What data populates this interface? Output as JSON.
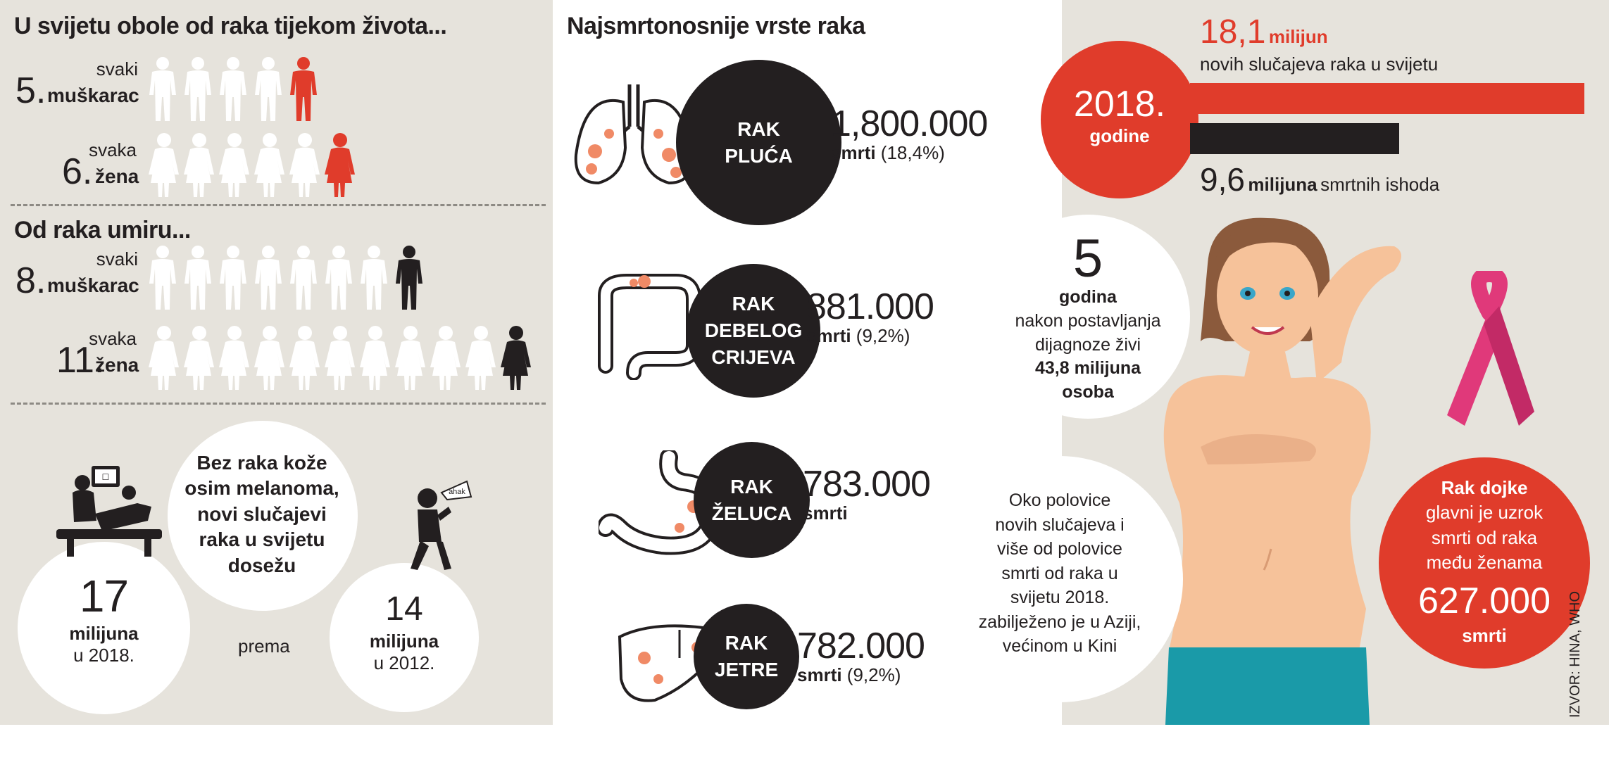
{
  "colors": {
    "red": "#e03c2b",
    "black": "#231f20",
    "panel": "#e6e3dc",
    "pink": "#e0397a",
    "teal": "#1a9aa8"
  },
  "incidence": {
    "title": "U svijetu obole od raka tijekom života...",
    "men": {
      "num": "5.",
      "word": "svaki",
      "label": "muškarac",
      "count": 5
    },
    "women": {
      "num": "6.",
      "word": "svaka",
      "label": "žena",
      "count": 6
    }
  },
  "mortality": {
    "title": "Od raka umiru...",
    "men": {
      "num": "8.",
      "word": "svaki",
      "label": "muškarac",
      "count": 8
    },
    "women": {
      "num": "11.",
      "word": "svaka",
      "label": "žena",
      "count": 11
    }
  },
  "compare": {
    "text": "Bez raka kože osim melanoma, novi slučajevi raka u svijetu dosežu",
    "prema": "prema",
    "screen_badge": "☐",
    "ahak": "ahak",
    "a": {
      "num": "17",
      "unit": "milijuna",
      "year": "u 2018."
    },
    "b": {
      "num": "14",
      "unit": "milijuna",
      "year": "u 2012."
    }
  },
  "deadliest": {
    "title": "Najsmrtonosnije vrste raka",
    "deaths_word": "smrti",
    "items": [
      {
        "icon": "lungs-icon",
        "line1": "RAK",
        "line2": "PLUĆA",
        "line3": "",
        "deaths": "1,800.000",
        "pct": "(18,4%)"
      },
      {
        "icon": "colon-icon",
        "line1": "RAK",
        "line2": "DEBELOG",
        "line3": "CRIJEVA",
        "deaths": "881.000",
        "pct": "(9,2%)"
      },
      {
        "icon": "stomach-icon",
        "line1": "RAK",
        "line2": "ŽELUCA",
        "line3": "",
        "deaths": "783.000",
        "pct": ""
      },
      {
        "icon": "liver-icon",
        "line1": "RAK",
        "line2": "JETRE",
        "line3": "",
        "deaths": "782.000",
        "pct": "(9,2%)"
      }
    ]
  },
  "overview": {
    "year": "2018.",
    "year_sub": "godine",
    "new_num": "18,1",
    "new_unit": "milijun",
    "new_text": "novih slučajeva raka u svijetu",
    "new_value": 18.1,
    "death_num": "9,6",
    "death_unit": "milijuna",
    "death_text": "smrtnih ishoda",
    "death_value": 9.6
  },
  "survival": {
    "num": "5",
    "unit": "godina",
    "line1": "nakon postavljanja",
    "line2": "dijagnoze živi",
    "count": "43,8 milijuna",
    "who": "osoba"
  },
  "asia": {
    "text": [
      "Oko polovice",
      "novih slučajeva i",
      "više od polovice",
      "smrti od raka u",
      "svijetu 2018.",
      "zabilježeno je u Aziji,",
      "većinom u Kini"
    ]
  },
  "breast": {
    "title": "Rak dojke",
    "lines": [
      "glavni je uzrok",
      "smrti od raka",
      "među ženama"
    ],
    "num": "627.000",
    "word": "smrti"
  },
  "source": "IZVOR: HINA, WHO"
}
